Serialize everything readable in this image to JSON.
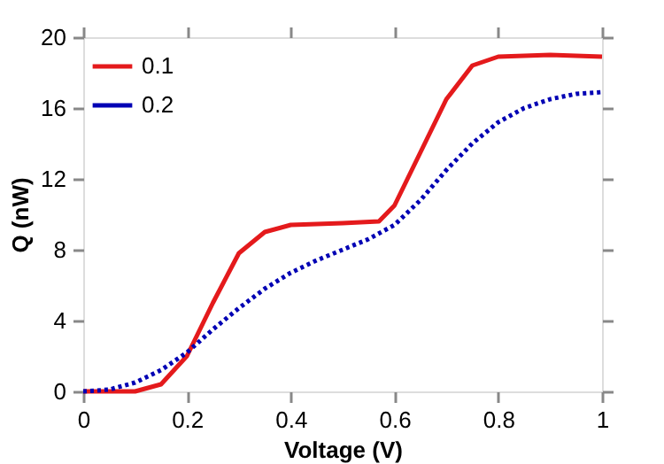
{
  "chart_data": {
    "type": "line",
    "xlabel": "Voltage (V)",
    "ylabel": "Q (nW)",
    "xlim": [
      0,
      1
    ],
    "ylim": [
      0,
      20
    ],
    "xticks": [
      0,
      0.2,
      0.4,
      0.6,
      0.8,
      1
    ],
    "yticks": [
      0,
      4,
      8,
      12,
      16,
      20
    ],
    "legend": "top left",
    "grid": false,
    "marker": "none",
    "series": [
      {
        "name": "0.1",
        "color": "#e41a1c",
        "line_style": "solid",
        "x": [
          0,
          0.1,
          0.15,
          0.2,
          0.25,
          0.3,
          0.35,
          0.4,
          0.5,
          0.57,
          0.6,
          0.65,
          0.7,
          0.75,
          0.8,
          0.9,
          1
        ],
        "values": [
          0,
          0,
          0.4,
          2,
          5,
          7.8,
          9,
          9.4,
          9.5,
          9.6,
          10.5,
          13.5,
          16.5,
          18.4,
          18.9,
          19,
          18.9
        ]
      },
      {
        "name": "0.2",
        "color": "#0000b4",
        "line_style": "dotted",
        "x": [
          0,
          0.05,
          0.1,
          0.15,
          0.2,
          0.25,
          0.3,
          0.35,
          0.4,
          0.45,
          0.5,
          0.55,
          0.6,
          0.65,
          0.7,
          0.75,
          0.8,
          0.85,
          0.9,
          0.95,
          1
        ],
        "values": [
          0,
          0.1,
          0.5,
          1.2,
          2.2,
          3.5,
          4.7,
          5.8,
          6.7,
          7.4,
          8,
          8.6,
          9.4,
          10.8,
          12.5,
          14,
          15.2,
          16,
          16.5,
          16.8,
          16.9
        ]
      }
    ]
  }
}
